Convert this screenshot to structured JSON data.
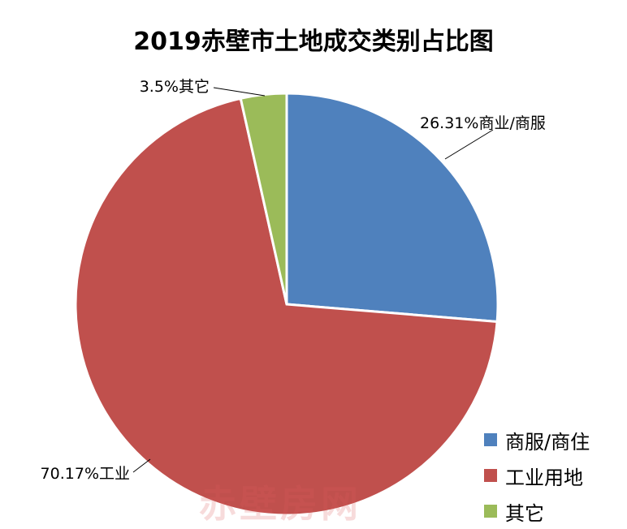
{
  "chart_data": {
    "type": "pie",
    "title": "2019赤壁市土地成交类别占比图",
    "slices": [
      {
        "name": "商服/商住",
        "value": 26.31,
        "label": "26.31%商业/商服",
        "color": "#4F81BD"
      },
      {
        "name": "工业用地",
        "value": 70.17,
        "label": "70.17%工业",
        "color": "#C0504D"
      },
      {
        "name": "其它",
        "value": 3.5,
        "label": "3.5%其它",
        "color": "#9BBB59"
      }
    ],
    "legend_position": "bottom-right"
  },
  "watermark": "赤壁房网"
}
